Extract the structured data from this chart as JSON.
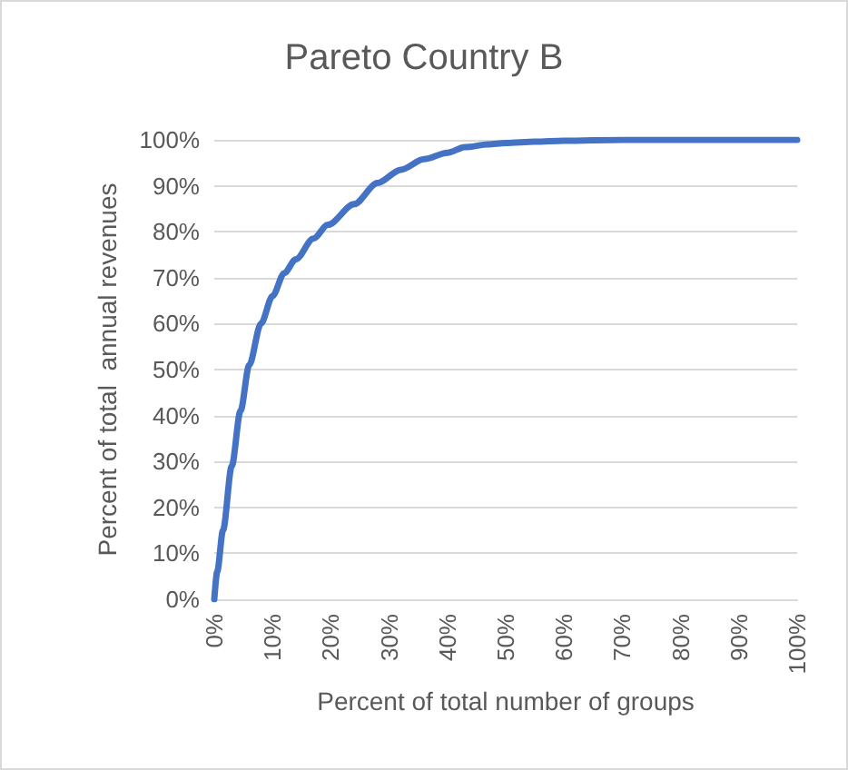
{
  "chart_data": {
    "type": "line",
    "title": "Pareto Country B",
    "xlabel": "Percent of total number of groups",
    "ylabel": "Percent of total  annual revenues",
    "x": [
      0,
      0.5,
      1.5,
      3,
      4.5,
      6,
      8,
      10,
      12,
      14,
      17,
      19.5,
      24,
      28,
      32,
      36,
      40,
      43,
      47,
      50,
      55,
      60,
      70,
      80,
      90,
      100
    ],
    "series": [
      {
        "color": "#4472c4",
        "values": [
          0,
          6,
          15,
          29,
          41,
          51,
          60,
          66,
          71,
          74,
          78.5,
          81.5,
          86,
          90.6,
          93.5,
          95.8,
          97.2,
          98.4,
          99,
          99.3,
          99.6,
          99.8,
          100,
          100,
          100,
          100
        ]
      }
    ],
    "xlim": [
      0,
      100
    ],
    "xticks": [
      {
        "value": 0,
        "label": "0%"
      },
      {
        "value": 10,
        "label": "10%"
      },
      {
        "value": 20,
        "label": "20%"
      },
      {
        "value": 30,
        "label": "30%"
      },
      {
        "value": 40,
        "label": "40%"
      },
      {
        "value": 50,
        "label": "50%"
      },
      {
        "value": 60,
        "label": "60%"
      },
      {
        "value": 70,
        "label": "70%"
      },
      {
        "value": 80,
        "label": "80%"
      },
      {
        "value": 90,
        "label": "90%"
      },
      {
        "value": 100,
        "label": "100%"
      }
    ],
    "ylim": [
      0,
      100
    ],
    "yticks": [
      {
        "value": 0,
        "label": "0%"
      },
      {
        "value": 10,
        "label": "10%"
      },
      {
        "value": 20,
        "label": "20%"
      },
      {
        "value": 30,
        "label": "30%"
      },
      {
        "value": 40,
        "label": "40%"
      },
      {
        "value": 50,
        "label": "50%"
      },
      {
        "value": 60,
        "label": "60%"
      },
      {
        "value": 70,
        "label": "70%"
      },
      {
        "value": 80,
        "label": "80%"
      },
      {
        "value": 90,
        "label": "90%"
      },
      {
        "value": 100,
        "label": "100%"
      }
    ],
    "grid": "y",
    "marker": "none",
    "line_style": "solid"
  }
}
